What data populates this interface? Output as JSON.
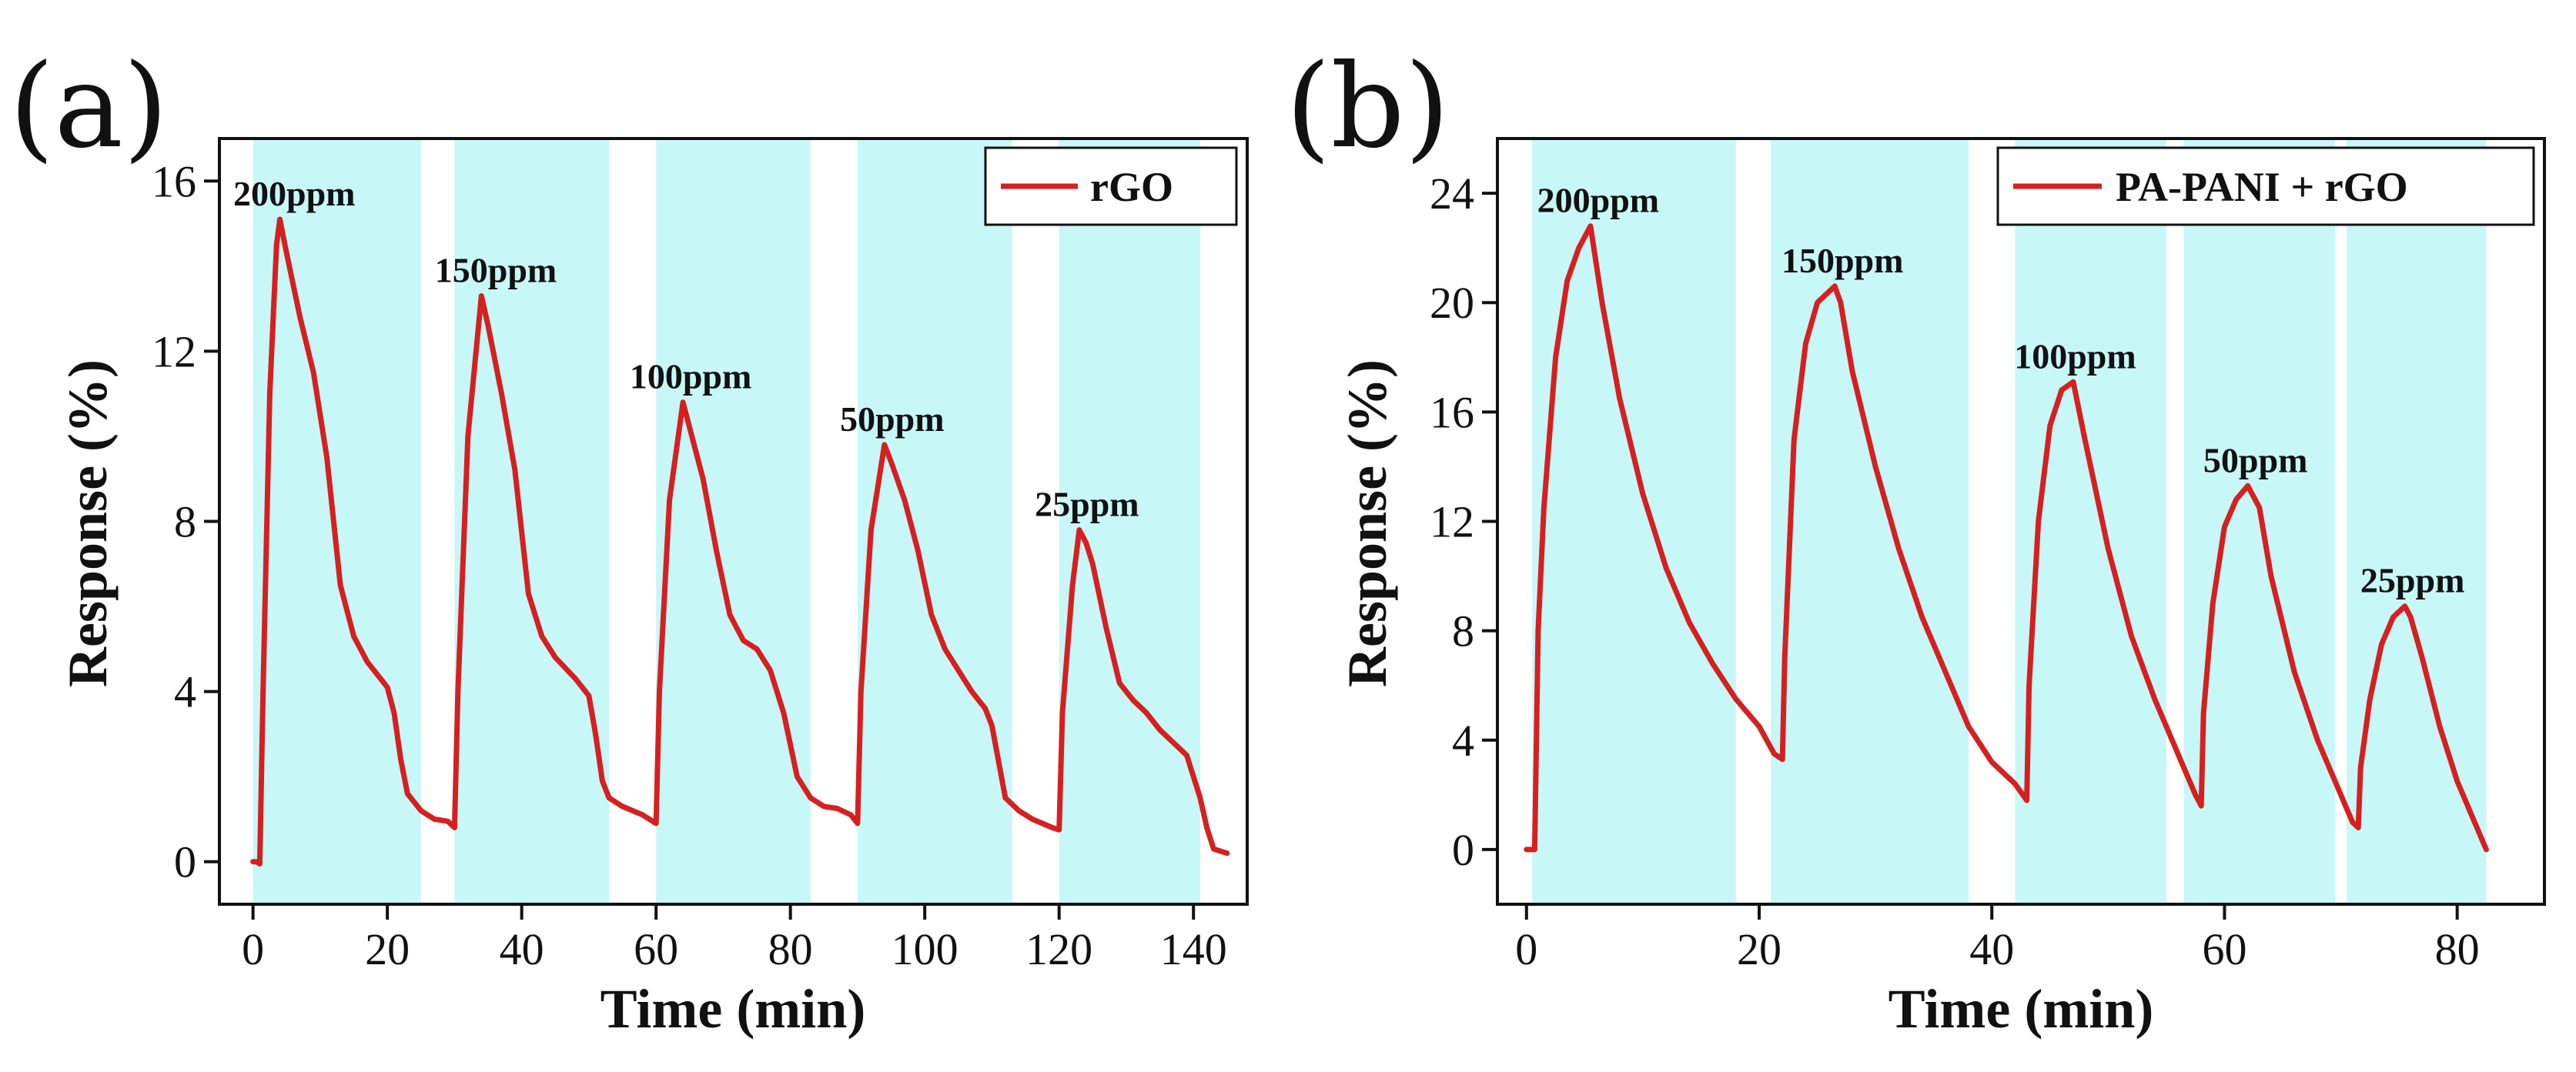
{
  "chart_data": [
    {
      "panel_label": "(a)",
      "type": "line",
      "xlabel": "Time (min)",
      "ylabel": "Response (%)",
      "xlim": [
        -5,
        148
      ],
      "ylim": [
        -1,
        17
      ],
      "xticks": [
        0,
        20,
        40,
        60,
        80,
        100,
        120,
        140
      ],
      "yticks": [
        0,
        4,
        8,
        12,
        16
      ],
      "legend": {
        "label": "rGO",
        "position": "top-right"
      },
      "line_color": "#d62020",
      "shade_color": "#c8f7f8",
      "exposure_windows": [
        [
          0,
          25
        ],
        [
          30,
          53
        ],
        [
          60,
          83
        ],
        [
          90,
          113
        ],
        [
          120,
          141
        ]
      ],
      "peak_labels": [
        {
          "text": "200ppm",
          "x": 5,
          "y": 15.1
        },
        {
          "text": "150ppm",
          "x": 35,
          "y": 13.3
        },
        {
          "text": "100ppm",
          "x": 64,
          "y": 10.8
        },
        {
          "text": "50ppm",
          "x": 94,
          "y": 9.8
        },
        {
          "text": "25ppm",
          "x": 123,
          "y": 7.8
        }
      ],
      "series": [
        {
          "name": "rGO",
          "points": [
            [
              0,
              0
            ],
            [
              0.5,
              0
            ],
            [
              1,
              -0.05
            ],
            [
              1.5,
              4
            ],
            [
              2.5,
              11
            ],
            [
              3.5,
              14.5
            ],
            [
              4,
              15.1
            ],
            [
              5,
              14.3
            ],
            [
              7,
              12.8
            ],
            [
              9,
              11.5
            ],
            [
              11,
              9.5
            ],
            [
              13,
              6.5
            ],
            [
              15,
              5.3
            ],
            [
              17,
              4.7
            ],
            [
              19,
              4.3
            ],
            [
              20,
              4.1
            ],
            [
              21,
              3.5
            ],
            [
              22,
              2.4
            ],
            [
              23,
              1.6
            ],
            [
              25,
              1.2
            ],
            [
              27,
              1.0
            ],
            [
              29,
              0.95
            ],
            [
              30,
              0.8
            ],
            [
              30.5,
              4
            ],
            [
              32,
              10
            ],
            [
              34,
              13.3
            ],
            [
              35,
              12.6
            ],
            [
              37,
              11
            ],
            [
              39,
              9.2
            ],
            [
              41,
              6.3
            ],
            [
              43,
              5.3
            ],
            [
              45,
              4.8
            ],
            [
              48,
              4.3
            ],
            [
              50,
              3.9
            ],
            [
              51,
              3.0
            ],
            [
              52,
              1.9
            ],
            [
              53,
              1.5
            ],
            [
              55,
              1.3
            ],
            [
              58,
              1.1
            ],
            [
              60,
              0.9
            ],
            [
              60.5,
              4
            ],
            [
              62,
              8.5
            ],
            [
              64,
              10.8
            ],
            [
              65,
              10.2
            ],
            [
              67,
              9
            ],
            [
              69,
              7.3
            ],
            [
              71,
              5.8
            ],
            [
              73,
              5.2
            ],
            [
              75,
              5.0
            ],
            [
              77,
              4.5
            ],
            [
              79,
              3.5
            ],
            [
              81,
              2.0
            ],
            [
              83,
              1.5
            ],
            [
              85,
              1.3
            ],
            [
              87,
              1.25
            ],
            [
              89,
              1.1
            ],
            [
              90,
              0.9
            ],
            [
              90.5,
              4
            ],
            [
              92,
              7.8
            ],
            [
              94,
              9.8
            ],
            [
              95,
              9.4
            ],
            [
              97,
              8.5
            ],
            [
              99,
              7.3
            ],
            [
              101,
              5.8
            ],
            [
              103,
              5.0
            ],
            [
              105,
              4.5
            ],
            [
              107,
              4.0
            ],
            [
              109,
              3.6
            ],
            [
              110,
              3.2
            ],
            [
              112,
              1.5
            ],
            [
              114,
              1.2
            ],
            [
              116,
              1.0
            ],
            [
              119,
              0.8
            ],
            [
              120,
              0.75
            ],
            [
              120.5,
              3.5
            ],
            [
              122,
              6.5
            ],
            [
              123,
              7.8
            ],
            [
              124,
              7.5
            ],
            [
              125,
              7.0
            ],
            [
              127,
              5.5
            ],
            [
              129,
              4.2
            ],
            [
              131,
              3.8
            ],
            [
              133,
              3.5
            ],
            [
              135,
              3.1
            ],
            [
              137,
              2.8
            ],
            [
              139,
              2.5
            ],
            [
              141,
              1.5
            ],
            [
              142,
              0.8
            ],
            [
              143,
              0.3
            ],
            [
              144,
              0.25
            ],
            [
              145,
              0.2
            ]
          ]
        }
      ]
    },
    {
      "panel_label": "(b)",
      "type": "line",
      "xlabel": "Time (min)",
      "ylabel": "Response (%)",
      "xlim": [
        -2.5,
        87.5
      ],
      "ylim": [
        -2,
        26
      ],
      "xticks": [
        0,
        20,
        40,
        60,
        80
      ],
      "yticks": [
        0,
        4,
        8,
        12,
        16,
        20,
        24
      ],
      "legend": {
        "label": "PA-PANI + rGO",
        "position": "top-right"
      },
      "line_color": "#d62020",
      "shade_color": "#c8f7f8",
      "exposure_windows": [
        [
          0.5,
          18
        ],
        [
          21,
          38
        ],
        [
          42,
          55
        ],
        [
          56.5,
          69.5
        ],
        [
          70.5,
          82.5
        ]
      ],
      "peak_labels": [
        {
          "text": "200ppm",
          "x": 5.5,
          "y": 22.8
        },
        {
          "text": "150ppm",
          "x": 26.5,
          "y": 20.6
        },
        {
          "text": "100ppm",
          "x": 46.5,
          "y": 17.1
        },
        {
          "text": "50ppm",
          "x": 62,
          "y": 13.3
        },
        {
          "text": "25ppm",
          "x": 75.5,
          "y": 8.9
        }
      ],
      "series": [
        {
          "name": "PA-PANI + rGO",
          "points": [
            [
              0,
              0
            ],
            [
              0.6,
              0
            ],
            [
              0.7,
              0
            ],
            [
              1,
              8
            ],
            [
              1.5,
              12.5
            ],
            [
              2.5,
              18
            ],
            [
              3.5,
              20.8
            ],
            [
              4.5,
              22
            ],
            [
              5.5,
              22.8
            ],
            [
              6.5,
              20
            ],
            [
              8,
              16.5
            ],
            [
              10,
              13
            ],
            [
              12,
              10.3
            ],
            [
              14,
              8.3
            ],
            [
              16,
              6.8
            ],
            [
              18,
              5.5
            ],
            [
              20,
              4.5
            ],
            [
              21.3,
              3.5
            ],
            [
              22,
              3.3
            ],
            [
              22.2,
              7
            ],
            [
              23,
              15
            ],
            [
              24,
              18.5
            ],
            [
              25,
              20
            ],
            [
              26.5,
              20.6
            ],
            [
              27,
              20
            ],
            [
              28,
              17.5
            ],
            [
              30,
              14
            ],
            [
              32,
              11
            ],
            [
              34,
              8.5
            ],
            [
              36,
              6.5
            ],
            [
              38,
              4.5
            ],
            [
              40,
              3.2
            ],
            [
              42,
              2.4
            ],
            [
              43,
              1.8
            ],
            [
              43.2,
              6
            ],
            [
              44,
              12
            ],
            [
              45,
              15.5
            ],
            [
              46,
              16.8
            ],
            [
              47,
              17.1
            ],
            [
              48,
              15
            ],
            [
              50,
              11
            ],
            [
              52,
              7.8
            ],
            [
              54,
              5.5
            ],
            [
              56,
              3.5
            ],
            [
              57.5,
              2
            ],
            [
              58,
              1.6
            ],
            [
              58.2,
              5
            ],
            [
              59,
              9
            ],
            [
              60,
              11.8
            ],
            [
              61,
              12.8
            ],
            [
              62,
              13.3
            ],
            [
              63,
              12.5
            ],
            [
              64,
              10
            ],
            [
              66,
              6.5
            ],
            [
              68,
              4
            ],
            [
              70,
              2
            ],
            [
              71,
              1
            ],
            [
              71.5,
              0.8
            ],
            [
              71.7,
              3
            ],
            [
              72.5,
              5.5
            ],
            [
              73.5,
              7.5
            ],
            [
              74.5,
              8.5
            ],
            [
              75.5,
              8.9
            ],
            [
              76,
              8.5
            ],
            [
              77,
              7
            ],
            [
              78.5,
              4.5
            ],
            [
              80,
              2.5
            ],
            [
              81.5,
              1
            ],
            [
              82.5,
              0
            ]
          ]
        }
      ]
    }
  ]
}
